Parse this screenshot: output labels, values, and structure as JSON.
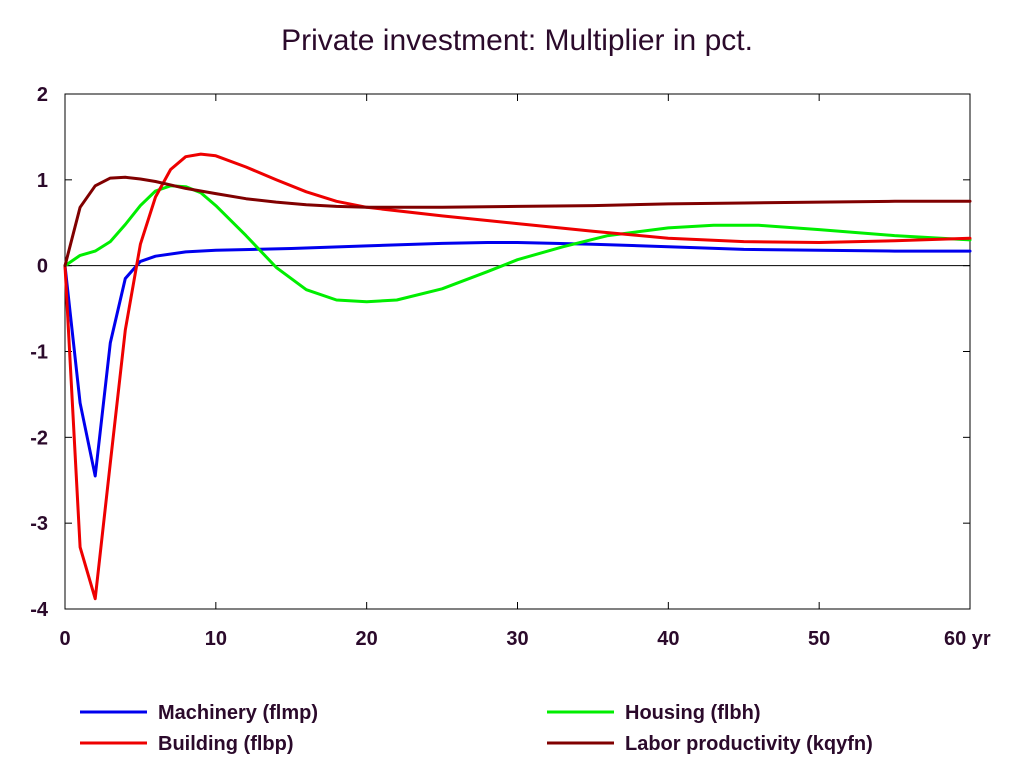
{
  "chart_data": {
    "type": "line",
    "title": "Private investment: Multiplier in pct.",
    "xlabel": "",
    "ylabel": "",
    "xlim": [
      0,
      60
    ],
    "ylim": [
      -4,
      2
    ],
    "x_ticks": [
      {
        "value": 0,
        "label": "0"
      },
      {
        "value": 10,
        "label": "10"
      },
      {
        "value": 20,
        "label": "20"
      },
      {
        "value": 30,
        "label": "30"
      },
      {
        "value": 40,
        "label": "40"
      },
      {
        "value": 50,
        "label": "50"
      },
      {
        "value": 60,
        "label": "60 yr"
      }
    ],
    "y_ticks": [
      {
        "value": 2,
        "label": "2"
      },
      {
        "value": 1,
        "label": "1"
      },
      {
        "value": 0,
        "label": "0"
      },
      {
        "value": -1,
        "label": "-1"
      },
      {
        "value": -2,
        "label": "-2"
      },
      {
        "value": -3,
        "label": "-3"
      },
      {
        "value": -4,
        "label": "-4"
      }
    ],
    "grid": false,
    "zero_line": true,
    "legend_position": "bottom",
    "series": [
      {
        "name": "Machinery (flmp)",
        "color": "#0000ee",
        "points": [
          [
            0,
            0
          ],
          [
            1,
            -1.6
          ],
          [
            2,
            -2.45
          ],
          [
            3,
            -0.9
          ],
          [
            4,
            -0.15
          ],
          [
            5,
            0.05
          ],
          [
            6,
            0.11
          ],
          [
            8,
            0.16
          ],
          [
            10,
            0.18
          ],
          [
            15,
            0.2
          ],
          [
            20,
            0.23
          ],
          [
            25,
            0.26
          ],
          [
            28,
            0.27
          ],
          [
            30,
            0.27
          ],
          [
            35,
            0.25
          ],
          [
            40,
            0.22
          ],
          [
            45,
            0.19
          ],
          [
            50,
            0.18
          ],
          [
            55,
            0.17
          ],
          [
            60,
            0.17
          ]
        ]
      },
      {
        "name": "Housing (flbh)",
        "color": "#00ee00",
        "points": [
          [
            0,
            0
          ],
          [
            1,
            0.12
          ],
          [
            2,
            0.17
          ],
          [
            3,
            0.28
          ],
          [
            4,
            0.48
          ],
          [
            5,
            0.7
          ],
          [
            6,
            0.87
          ],
          [
            7,
            0.93
          ],
          [
            8,
            0.92
          ],
          [
            9,
            0.85
          ],
          [
            10,
            0.7
          ],
          [
            12,
            0.35
          ],
          [
            14,
            -0.02
          ],
          [
            16,
            -0.28
          ],
          [
            18,
            -0.4
          ],
          [
            20,
            -0.42
          ],
          [
            22,
            -0.4
          ],
          [
            25,
            -0.27
          ],
          [
            28,
            -0.07
          ],
          [
            30,
            0.07
          ],
          [
            33,
            0.22
          ],
          [
            36,
            0.35
          ],
          [
            40,
            0.44
          ],
          [
            43,
            0.47
          ],
          [
            46,
            0.47
          ],
          [
            50,
            0.42
          ],
          [
            55,
            0.35
          ],
          [
            60,
            0.3
          ]
        ]
      },
      {
        "name": "Building (flbp)",
        "color": "#ee0000",
        "points": [
          [
            0,
            0
          ],
          [
            1,
            -3.28
          ],
          [
            2,
            -3.88
          ],
          [
            3,
            -2.3
          ],
          [
            4,
            -0.75
          ],
          [
            5,
            0.25
          ],
          [
            6,
            0.8
          ],
          [
            7,
            1.12
          ],
          [
            8,
            1.27
          ],
          [
            9,
            1.3
          ],
          [
            10,
            1.28
          ],
          [
            12,
            1.15
          ],
          [
            14,
            1.0
          ],
          [
            16,
            0.86
          ],
          [
            18,
            0.75
          ],
          [
            20,
            0.68
          ],
          [
            25,
            0.58
          ],
          [
            30,
            0.49
          ],
          [
            35,
            0.4
          ],
          [
            40,
            0.32
          ],
          [
            45,
            0.28
          ],
          [
            50,
            0.27
          ],
          [
            55,
            0.29
          ],
          [
            60,
            0.32
          ]
        ]
      },
      {
        "name": "Labor productivity (kqyfn)",
        "color": "#800000",
        "points": [
          [
            0,
            0
          ],
          [
            1,
            0.68
          ],
          [
            2,
            0.93
          ],
          [
            3,
            1.02
          ],
          [
            4,
            1.03
          ],
          [
            5,
            1.01
          ],
          [
            6,
            0.98
          ],
          [
            8,
            0.9
          ],
          [
            10,
            0.84
          ],
          [
            12,
            0.78
          ],
          [
            14,
            0.74
          ],
          [
            16,
            0.71
          ],
          [
            18,
            0.69
          ],
          [
            20,
            0.68
          ],
          [
            25,
            0.68
          ],
          [
            30,
            0.69
          ],
          [
            35,
            0.7
          ],
          [
            40,
            0.72
          ],
          [
            45,
            0.73
          ],
          [
            50,
            0.74
          ],
          [
            55,
            0.75
          ],
          [
            60,
            0.75
          ]
        ]
      }
    ]
  }
}
